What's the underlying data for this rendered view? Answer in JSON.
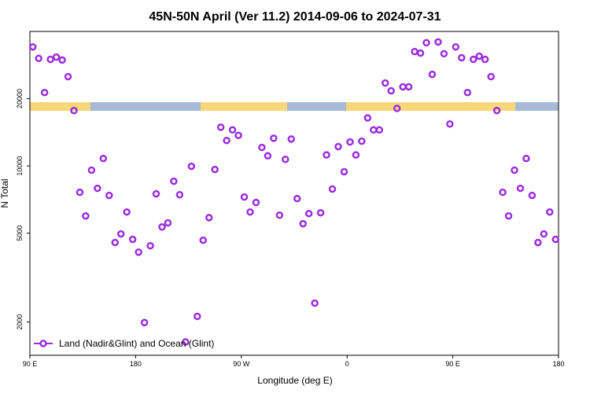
{
  "chart_data": {
    "type": "scatter",
    "title": "45N-50N April (Ver 11.2)   2014-09-06 to 2024-07-31",
    "x_label": "Longitude (deg E)",
    "y_label": "N Total",
    "log_y": true,
    "legend_position": "lower left",
    "xlim": [
      90,
      540
    ],
    "ylim": [
      1420,
      40000
    ],
    "xticks": [
      {
        "value": 90,
        "label": "90 E"
      },
      180,
      {
        "value": 270,
        "label": "90 W"
      },
      {
        "value": 360,
        "label": "0"
      },
      {
        "value": 450,
        "label": "90 E"
      },
      {
        "value": 540,
        "label": "180"
      }
    ],
    "yticks": [
      2000,
      5000,
      10000,
      20000
    ],
    "series": [
      {
        "name": "Land (Nadir&Glint) and Ocean (Glint)",
        "color": "#9b2ee0",
        "x": [
          92.5,
          97.5,
          102.5,
          107.5,
          112.5,
          117.5,
          122.5,
          127.5,
          132.5,
          137.5,
          142.5,
          147.5,
          152.5,
          157.5,
          162.5,
          167.5,
          172.5,
          177.5,
          182.5,
          187.5,
          192.5,
          197.5,
          202.5,
          207.5,
          212.5,
          217.5,
          222.5,
          227.5,
          232.5,
          237.5,
          242.5,
          247.5,
          252.5,
          257.5,
          262.5,
          267.5,
          272.5,
          277.5,
          282.5,
          287.5,
          292.5,
          297.5,
          302.5,
          307.5,
          312.5,
          317.5,
          322.5,
          327.5,
          332.5,
          337.5,
          342.5,
          347.5,
          352.5,
          357.5,
          362.5,
          367.5,
          372.5,
          377.5,
          382.5,
          387.5,
          392.5,
          397.5,
          402.5,
          407.5,
          412.5,
          417.5,
          422.5,
          427.5,
          432.5,
          437.5,
          442.5,
          447.5,
          452.5,
          457.5,
          462.5,
          467.5,
          472.5,
          477.5,
          482.5,
          487.5,
          492.5,
          497.5,
          502.5,
          507.5,
          512.5,
          517.5,
          522.5,
          527.5,
          532.5,
          537.5
        ],
        "values": [
          34100,
          30300,
          21300,
          30000,
          30700,
          29800,
          25100,
          17700,
          7620,
          5970,
          9570,
          7940,
          10800,
          7380,
          4540,
          4960,
          6220,
          4690,
          4110,
          1990,
          4390,
          7500,
          5330,
          5560,
          8540,
          7430,
          1630,
          9960,
          2120,
          4650,
          5870,
          9640,
          14900,
          13000,
          14500,
          13700,
          7260,
          6220,
          6860,
          12100,
          11100,
          13300,
          6020,
          10700,
          13200,
          7140,
          5510,
          6120,
          2430,
          6170,
          11200,
          7880,
          12200,
          9420,
          12800,
          11200,
          12900,
          16400,
          14500,
          14500,
          23500,
          21700,
          18100,
          22600,
          22600,
          32500,
          32000,
          35600,
          25700,
          35900,
          31800,
          15400,
          34100,
          30500,
          21300,
          30000,
          31000,
          30000,
          25100,
          17700,
          7620,
          5970,
          9570,
          7940,
          10800,
          7380,
          4540,
          4960,
          6220,
          4690
        ]
      }
    ]
  }
}
